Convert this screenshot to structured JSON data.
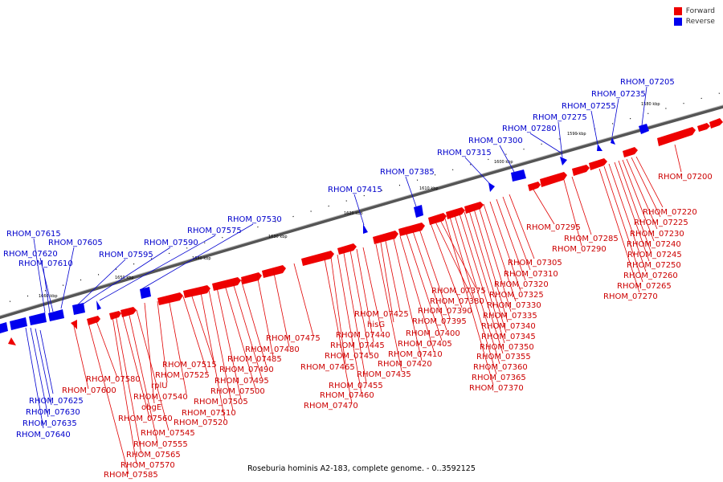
{
  "colors": {
    "forward": "#ee0000",
    "reverse": "#0000ee",
    "backbone": "#777777",
    "leader_fwd": "#e00000",
    "leader_rev": "#0000d0"
  },
  "legend": {
    "forward": {
      "label": "Forward",
      "color": "#ee0000"
    },
    "reverse": {
      "label": "Reverse",
      "color": "#0000ee"
    }
  },
  "caption": "Roseburia hominis A2-183, complete genome. - 0..3592125",
  "scale_ticks": [
    {
      "label": "1580 kbp"
    },
    {
      "label": "1590 kbp"
    },
    {
      "label": "1600 kbp"
    },
    {
      "label": "1610 kbp"
    },
    {
      "label": "1620 kbp"
    },
    {
      "label": "1630 kbp"
    },
    {
      "label": "1640 kbp"
    },
    {
      "label": "1650 kbp"
    },
    {
      "label": "1660 kbp"
    }
  ],
  "reverse_genes": [
    "RHOM_07205",
    "RHOM_07235",
    "RHOM_07255",
    "RHOM_07275",
    "RHOM_07280",
    "RHOM_07300",
    "RHOM_07315",
    "RHOM_07385",
    "RHOM_07415",
    "RHOM_07530",
    "RHOM_07575",
    "RHOM_07590",
    "RHOM_07595",
    "RHOM_07605",
    "RHOM_07615",
    "RHOM_07620",
    "RHOM_07610",
    "RHOM_07625",
    "RHOM_07630",
    "RHOM_07635",
    "RHOM_07640"
  ],
  "forward_genes": [
    "RHOM_07200",
    "RHOM_07220",
    "RHOM_07225",
    "RHOM_07230",
    "RHOM_07240",
    "RHOM_07245",
    "RHOM_07250",
    "RHOM_07260",
    "RHOM_07265",
    "RHOM_07270",
    "RHOM_07285",
    "RHOM_07290",
    "RHOM_07295",
    "RHOM_07305",
    "RHOM_07310",
    "RHOM_07320",
    "RHOM_07325",
    "RHOM_07330",
    "RHOM_07335",
    "RHOM_07340",
    "RHOM_07345",
    "RHOM_07350",
    "RHOM_07355",
    "RHOM_07360",
    "RHOM_07365",
    "RHOM_07370",
    "RHOM_07375",
    "RHOM_07380",
    "RHOM_07390",
    "RHOM_07395",
    "RHOM_07400",
    "RHOM_07405",
    "RHOM_07410",
    "RHOM_07420",
    "RHOM_07425",
    "hisG",
    "RHOM_07435",
    "RHOM_07440",
    "RHOM_07445",
    "RHOM_07450",
    "RHOM_07455",
    "RHOM_07460",
    "RHOM_07465",
    "RHOM_07470",
    "RHOM_07475",
    "RHOM_07480",
    "RHOM_07485",
    "RHOM_07490",
    "RHOM_07495",
    "RHOM_07500",
    "RHOM_07505",
    "RHOM_07510",
    "RHOM_07515",
    "RHOM_07520",
    "RHOM_07525",
    "rplU",
    "RHOM_07540",
    "obgE",
    "RHOM_07545",
    "RHOM_07555",
    "RHOM_07560",
    "RHOM_07565",
    "RHOM_07570",
    "RHOM_07580",
    "RHOM_07585",
    "RHOM_07600"
  ]
}
